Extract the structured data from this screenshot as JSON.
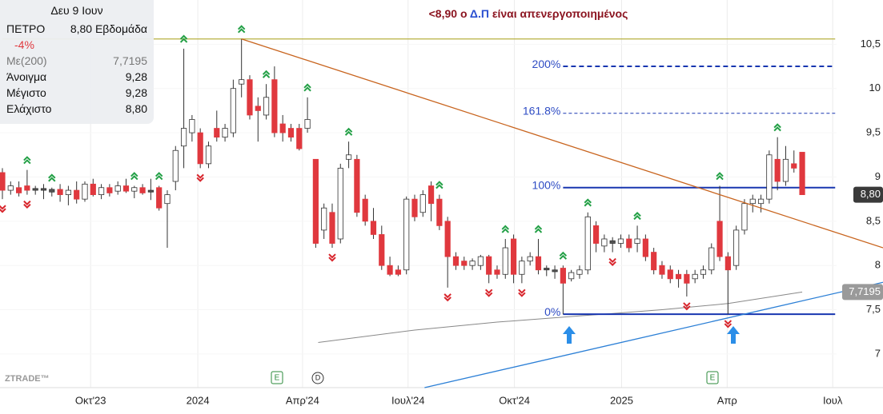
{
  "chart_data": {
    "type": "candlestick",
    "annotation": [
      "<8,90 ο ",
      "Δ.Π",
      " είναι απενεργοποιημένος"
    ],
    "watermark": "ZTRADE™",
    "info": {
      "date": "Δευ 9 Ιουν",
      "symbol": "ΠΕΤΡΟ",
      "price": "8,80",
      "period": "Εβδομάδα",
      "change": "-4%",
      "rows": [
        [
          "Με(200)",
          "7,7195"
        ],
        [
          "Άνοιγμα",
          "9,28"
        ],
        [
          "Μέγιστο",
          "9,28"
        ],
        [
          "Ελάχιστο",
          "8,80"
        ]
      ]
    },
    "xlim": [
      -0.29,
      106.8
    ],
    "ylim": [
      6.62,
      11.0
    ],
    "xticks": [
      {
        "value": 10.7,
        "label": "Οκτ'23"
      },
      {
        "value": 23.7,
        "label": "2024"
      },
      {
        "value": 36.4,
        "label": "Απρ'24"
      },
      {
        "value": 49.2,
        "label": "Ιουλ'24"
      },
      {
        "value": 62.1,
        "label": "Οκτ'24"
      },
      {
        "value": 75.1,
        "label": "2025"
      },
      {
        "value": 87.9,
        "label": "Απρ"
      },
      {
        "value": 100.7,
        "label": "Ιουλ"
      }
    ],
    "yticks": [
      {
        "value": 10.5,
        "label": "10,5"
      },
      10,
      {
        "value": 9.5,
        "label": "9,5"
      },
      9,
      {
        "value": 8.5,
        "label": "8,5"
      },
      8,
      {
        "value": 7.5,
        "label": "7,5"
      },
      7
    ],
    "grid": true,
    "colors": {
      "up": "#ffffff",
      "down": "#e0383e",
      "flat": "#555555",
      "signal_up": "#23a046",
      "signal_down": "#d8252c"
    },
    "x": [
      0,
      1,
      2,
      3,
      4,
      5,
      6,
      7,
      8,
      9,
      10,
      11,
      12,
      13,
      14,
      15,
      16,
      17,
      18,
      19,
      20,
      21,
      22,
      23,
      24,
      25,
      26,
      27,
      28,
      29,
      30,
      31,
      32,
      33,
      34,
      35,
      36,
      37,
      38,
      39,
      40,
      41,
      42,
      43,
      44,
      45,
      46,
      47,
      48,
      49,
      50,
      51,
      52,
      53,
      54,
      55,
      56,
      57,
      58,
      59,
      60,
      61,
      62,
      63,
      64,
      65,
      66,
      67,
      68,
      69,
      70,
      71,
      72,
      73,
      74,
      75,
      76,
      77,
      78,
      79,
      80,
      81,
      82,
      83,
      84,
      85,
      86,
      87,
      88,
      89,
      90,
      91,
      92,
      93,
      94,
      95,
      96,
      97
    ],
    "open": [
      9.05,
      8.85,
      8.88,
      8.9,
      8.85,
      8.87,
      8.83,
      8.86,
      8.8,
      8.85,
      8.75,
      8.92,
      8.8,
      8.88,
      8.84,
      8.9,
      8.84,
      8.88,
      8.85,
      8.88,
      8.7,
      8.95,
      9.35,
      9.5,
      9.5,
      9.15,
      9.55,
      9.45,
      9.5,
      10.05,
      10.1,
      9.8,
      9.7,
      10.1,
      9.6,
      9.55,
      9.55,
      9.55,
      9.2,
      8.4,
      8.6,
      8.3,
      9.2,
      9.2,
      8.75,
      8.5,
      8.35,
      8.0,
      7.95,
      7.95,
      8.75,
      8.6,
      8.9,
      8.75,
      8.5,
      8.1,
      8.05,
      8.0,
      8.0,
      8.1,
      7.95,
      7.9,
      8.3,
      7.9,
      8.05,
      8.1,
      7.95,
      7.95,
      7.97,
      7.85,
      7.9,
      7.95,
      8.45,
      8.22,
      8.28,
      8.25,
      8.3,
      8.25,
      8.3,
      8.15,
      8.0,
      7.95,
      7.9,
      7.9,
      7.85,
      7.9,
      7.95,
      8.5,
      8.1,
      8.0,
      8.4,
      8.7,
      8.7,
      8.75,
      9.2,
      8.95,
      9.15,
      9.28
    ],
    "high": [
      9.1,
      8.95,
      8.95,
      9.08,
      8.9,
      8.92,
      8.88,
      8.92,
      8.9,
      8.95,
      8.95,
      8.98,
      8.92,
      8.92,
      8.95,
      8.98,
      8.9,
      8.92,
      8.98,
      8.9,
      8.85,
      9.35,
      10.45,
      9.7,
      9.55,
      9.4,
      9.75,
      9.6,
      10.1,
      10.56,
      10.15,
      9.9,
      10.05,
      10.25,
      9.7,
      9.6,
      9.6,
      9.9,
      9.2,
      8.7,
      8.7,
      9.15,
      9.4,
      9.25,
      8.8,
      8.65,
      8.45,
      8.1,
      8.0,
      8.78,
      8.8,
      8.85,
      8.95,
      8.8,
      8.55,
      8.15,
      8.1,
      8.08,
      8.12,
      8.12,
      8.0,
      8.3,
      8.35,
      8.1,
      8.15,
      8.3,
      8.0,
      8.0,
      8.0,
      7.95,
      8.0,
      8.6,
      8.5,
      8.35,
      8.32,
      8.35,
      8.35,
      8.45,
      8.35,
      8.2,
      8.05,
      8.0,
      7.95,
      7.95,
      7.95,
      8.0,
      8.25,
      8.9,
      8.15,
      8.45,
      8.75,
      8.8,
      8.8,
      9.3,
      9.45,
      9.35,
      9.3,
      9.28
    ],
    "low": [
      8.75,
      8.8,
      8.78,
      8.8,
      8.8,
      8.75,
      8.78,
      8.72,
      8.68,
      8.7,
      8.72,
      8.78,
      8.75,
      8.78,
      8.8,
      8.82,
      8.76,
      8.8,
      8.74,
      8.62,
      8.2,
      8.85,
      9.1,
      9.4,
      9.1,
      9.1,
      9.4,
      9.4,
      9.45,
      9.9,
      9.65,
      9.4,
      9.65,
      9.45,
      9.4,
      9.4,
      9.3,
      9.5,
      8.2,
      8.3,
      8.2,
      8.25,
      9.1,
      8.55,
      8.45,
      8.3,
      7.95,
      7.88,
      7.88,
      7.9,
      8.5,
      8.55,
      8.5,
      8.4,
      7.75,
      7.95,
      7.95,
      7.95,
      7.95,
      7.8,
      7.85,
      7.85,
      7.8,
      7.8,
      8.0,
      7.9,
      7.88,
      7.85,
      7.45,
      7.82,
      7.85,
      7.9,
      8.15,
      8.15,
      8.15,
      8.2,
      8.15,
      8.15,
      8.05,
      7.9,
      7.85,
      7.8,
      7.75,
      7.65,
      7.8,
      7.85,
      7.9,
      8.05,
      7.45,
      7.95,
      8.35,
      8.6,
      8.6,
      8.7,
      8.85,
      8.9,
      9.05,
      8.8
    ],
    "close": [
      8.85,
      8.9,
      8.82,
      8.85,
      8.87,
      8.85,
      8.86,
      8.8,
      8.85,
      8.75,
      8.92,
      8.8,
      8.88,
      8.82,
      8.9,
      8.84,
      8.88,
      8.82,
      8.83,
      8.65,
      8.8,
      9.3,
      9.55,
      9.65,
      9.15,
      9.35,
      9.45,
      9.55,
      10.0,
      10.1,
      9.7,
      9.75,
      9.9,
      9.5,
      9.5,
      9.45,
      9.32,
      9.65,
      8.25,
      8.65,
      8.25,
      9.1,
      9.25,
      8.6,
      8.5,
      8.35,
      8.0,
      7.9,
      7.9,
      8.75,
      8.55,
      8.8,
      8.7,
      8.45,
      8.1,
      8.0,
      8.0,
      8.05,
      8.1,
      7.9,
      7.9,
      8.2,
      7.9,
      8.05,
      8.1,
      7.95,
      7.97,
      7.93,
      7.8,
      7.92,
      7.95,
      8.55,
      8.25,
      8.3,
      8.25,
      8.3,
      8.2,
      8.3,
      8.1,
      7.95,
      7.9,
      7.85,
      7.85,
      7.8,
      7.9,
      7.95,
      8.2,
      8.1,
      7.95,
      8.4,
      8.7,
      8.75,
      8.75,
      9.25,
      8.95,
      9.2,
      9.1,
      8.8
    ],
    "ma": {
      "x": [
        38.3,
        50,
        60,
        70,
        80,
        88,
        97
      ],
      "values": [
        7.13,
        7.27,
        7.36,
        7.43,
        7.5,
        7.57,
        7.7
      ]
    },
    "resistance": {
      "value": 10.56,
      "x": [
        0,
        101
      ]
    },
    "trendlines": [
      {
        "color": "#c8641e",
        "x": [
          29,
          106.8
        ],
        "values": [
          10.56,
          8.2
        ]
      },
      {
        "color": "#2b7fd6",
        "x": [
          51.2,
          106.8
        ],
        "values": [
          6.62,
          7.81
        ]
      }
    ],
    "fib": {
      "x": [
        68,
        101
      ],
      "levels": [
        {
          "label": "200%",
          "value": 10.25,
          "dash": true,
          "width": 2
        },
        {
          "label": "161.8%",
          "value": 9.72,
          "dash": true,
          "width": 1
        },
        {
          "label": "100%",
          "value": 8.88,
          "dash": false,
          "width": 2
        },
        {
          "label": "0%",
          "value": 7.45,
          "dash": false,
          "width": 2
        }
      ]
    },
    "signals_up": [
      3,
      6,
      16,
      19,
      22,
      29,
      32,
      37,
      42,
      53,
      61,
      65,
      68,
      71,
      77,
      87,
      94
    ],
    "signals_down": [
      0,
      3,
      24,
      40,
      54,
      59,
      63,
      74,
      83,
      88
    ]
  }
}
